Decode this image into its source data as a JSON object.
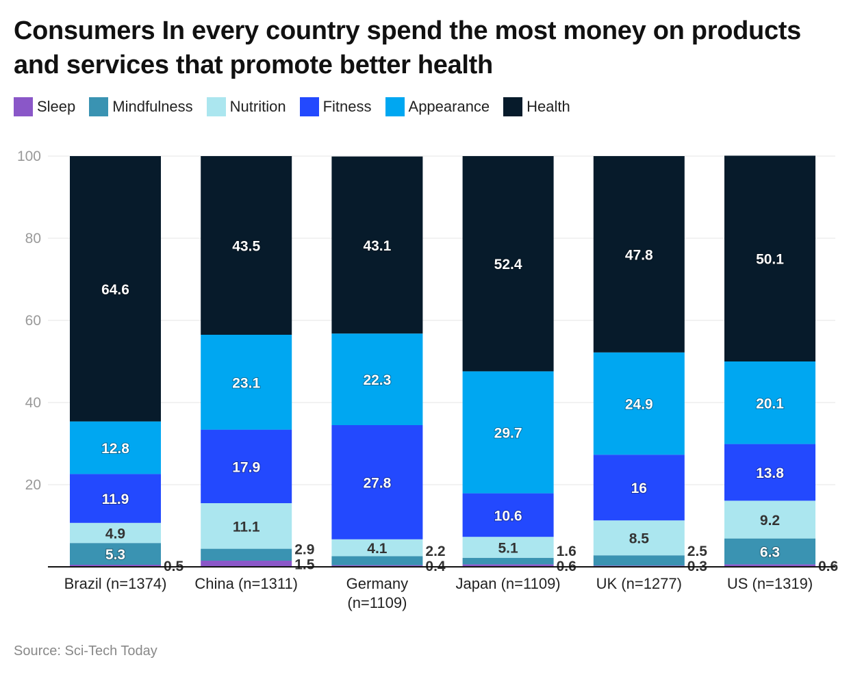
{
  "title": "Consumers In every country spend the most money on products and services that promote better health",
  "source_label": "Source:",
  "source": "Sci-Tech Today",
  "chart_data": {
    "type": "bar",
    "stacked": true,
    "title": "Consumers In every country spend the most money on products and services that promote better health",
    "categories": [
      "Brazil (n=1374)",
      "China (n=1311)",
      "Germany|(n=1109)",
      "Japan (n=1109)",
      "UK (n=1277)",
      "US (n=1319)"
    ],
    "ylim": [
      0,
      100
    ],
    "yticks": [
      20,
      40,
      60,
      80,
      100
    ],
    "grid": true,
    "legend_position": "top-left",
    "series": [
      {
        "name": "Sleep",
        "color": "#8a57c8",
        "label_color": "#ffffff",
        "values": [
          0.5,
          1.5,
          0.4,
          0.6,
          0.3,
          0.6
        ]
      },
      {
        "name": "Mindfulness",
        "color": "#3a93b2",
        "label_color": "#ffffff",
        "values": [
          5.3,
          2.9,
          2.2,
          1.6,
          2.5,
          6.3
        ]
      },
      {
        "name": "Nutrition",
        "color": "#abe6ef",
        "label_color": "#333333",
        "values": [
          4.9,
          11.1,
          4.1,
          5.1,
          8.5,
          9.2
        ]
      },
      {
        "name": "Fitness",
        "color": "#2349fe",
        "label_color": "#ffffff",
        "values": [
          11.9,
          17.9,
          27.8,
          10.6,
          16,
          13.8
        ]
      },
      {
        "name": "Appearance",
        "color": "#00a7f1",
        "label_color": "#ffffff",
        "values": [
          12.8,
          23.1,
          22.3,
          29.7,
          24.9,
          20.1
        ]
      },
      {
        "name": "Health",
        "color": "#071b2b",
        "label_color": "#ffffff",
        "values": [
          64.6,
          43.5,
          43.1,
          52.4,
          47.8,
          50.1
        ]
      }
    ]
  }
}
